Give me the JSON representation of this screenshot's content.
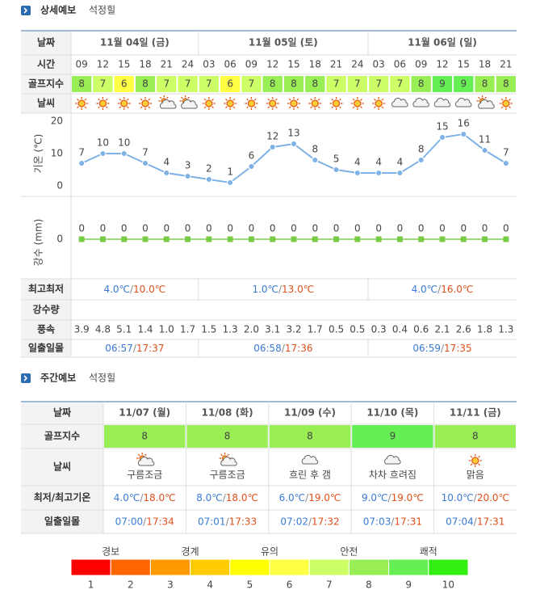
{
  "detail": {
    "title": "상세예보",
    "location": "석정힐",
    "row_labels": {
      "date": "날짜",
      "time": "시간",
      "golf": "골프지수",
      "weather": "날씨",
      "minmax": "최고최저",
      "rain": "강수량",
      "wind": "풍속",
      "sun": "일출일몰"
    },
    "days": [
      {
        "date": "11월 04일 (금)",
        "times": [
          "09",
          "12",
          "15",
          "18",
          "21",
          "24"
        ],
        "min": "4.0℃",
        "max": "10.0℃",
        "sunrise": "06:57",
        "sunset": "17:37"
      },
      {
        "date": "11월 05일 (토)",
        "times": [
          "03",
          "06",
          "09",
          "12",
          "15",
          "18",
          "21",
          "24"
        ],
        "min": "1.0℃",
        "max": "13.0℃",
        "sunrise": "06:58",
        "sunset": "17:36"
      },
      {
        "date": "11월 06일 (일)",
        "times": [
          "03",
          "06",
          "09",
          "12",
          "15",
          "18",
          "21"
        ],
        "min": "4.0℃",
        "max": "16.0℃",
        "sunrise": "06:59",
        "sunset": "17:35"
      }
    ],
    "golf_index": [
      8,
      7,
      6,
      8,
      7,
      7,
      7,
      6,
      7,
      8,
      8,
      8,
      7,
      7,
      7,
      7,
      8,
      9,
      9,
      8,
      8
    ],
    "wind": [
      "3.9",
      "4.8",
      "5.1",
      "1.4",
      "1.0",
      "1.7",
      "1.5",
      "1.3",
      "2.0",
      "3.1",
      "3.2",
      "1.7",
      "0.5",
      "0.5",
      "0.3",
      "0.4",
      "0.6",
      "2.1",
      "2.6",
      "1.8",
      "1.3"
    ],
    "temperature": {
      "axis_label": "기온 (℃)",
      "ylim": [
        0,
        20
      ],
      "yticks": [
        0,
        10,
        20
      ],
      "color": "#7eb1e5",
      "values": [
        7,
        10,
        10,
        7,
        4,
        3,
        2,
        1,
        6,
        12,
        13,
        8,
        5,
        4,
        4,
        4,
        8,
        15,
        16,
        11,
        7
      ]
    },
    "precipitation": {
      "axis_label": "강수 (mm)",
      "ylim": [
        0,
        10
      ],
      "yticks": [
        0
      ],
      "color": "#77cc44",
      "values": [
        0,
        0,
        0,
        0,
        0,
        0,
        0,
        0,
        0,
        0,
        0,
        0,
        0,
        0,
        0,
        0,
        0,
        0,
        0,
        0,
        0
      ]
    }
  },
  "weekly": {
    "title": "주간예보",
    "location": "석정힐",
    "row_labels": {
      "date": "날짜",
      "golf": "골프지수",
      "weather": "날씨",
      "minmax": "최저/최고기온",
      "sun": "일출일몰"
    },
    "days": [
      {
        "date": "11/07 (월)",
        "golf": 8,
        "weather": "구름조금",
        "min": "4.0℃",
        "max": "18.0℃",
        "sunrise": "07:00",
        "sunset": "17:34"
      },
      {
        "date": "11/08 (화)",
        "golf": 8,
        "weather": "구름조금",
        "min": "8.0℃",
        "max": "18.0℃",
        "sunrise": "07:01",
        "sunset": "17:33"
      },
      {
        "date": "11/09 (수)",
        "golf": 8,
        "weather": "흐린 후 갬",
        "min": "6.0℃",
        "max": "19.0℃",
        "sunrise": "07:02",
        "sunset": "17:32"
      },
      {
        "date": "11/10 (목)",
        "golf": 9,
        "weather": "차차 흐려짐",
        "min": "9.0℃",
        "max": "19.0℃",
        "sunrise": "07:03",
        "sunset": "17:31"
      },
      {
        "date": "11/11 (금)",
        "golf": 8,
        "weather": "맑음",
        "min": "10.0℃",
        "max": "20.0℃",
        "sunrise": "07:04",
        "sunset": "17:31"
      }
    ]
  },
  "separator": "/",
  "legend": {
    "levels": [
      "경보",
      "경계",
      "유의",
      "안전",
      "쾌적"
    ],
    "scale": [
      1,
      2,
      3,
      4,
      5,
      6,
      7,
      8,
      9,
      10
    ],
    "colors": [
      "#ff0000",
      "#ff6600",
      "#ff9900",
      "#ffcc00",
      "#ffff00",
      "#ffff44",
      "#ccff66",
      "#99ee55",
      "#66ee55",
      "#33ee11"
    ]
  }
}
